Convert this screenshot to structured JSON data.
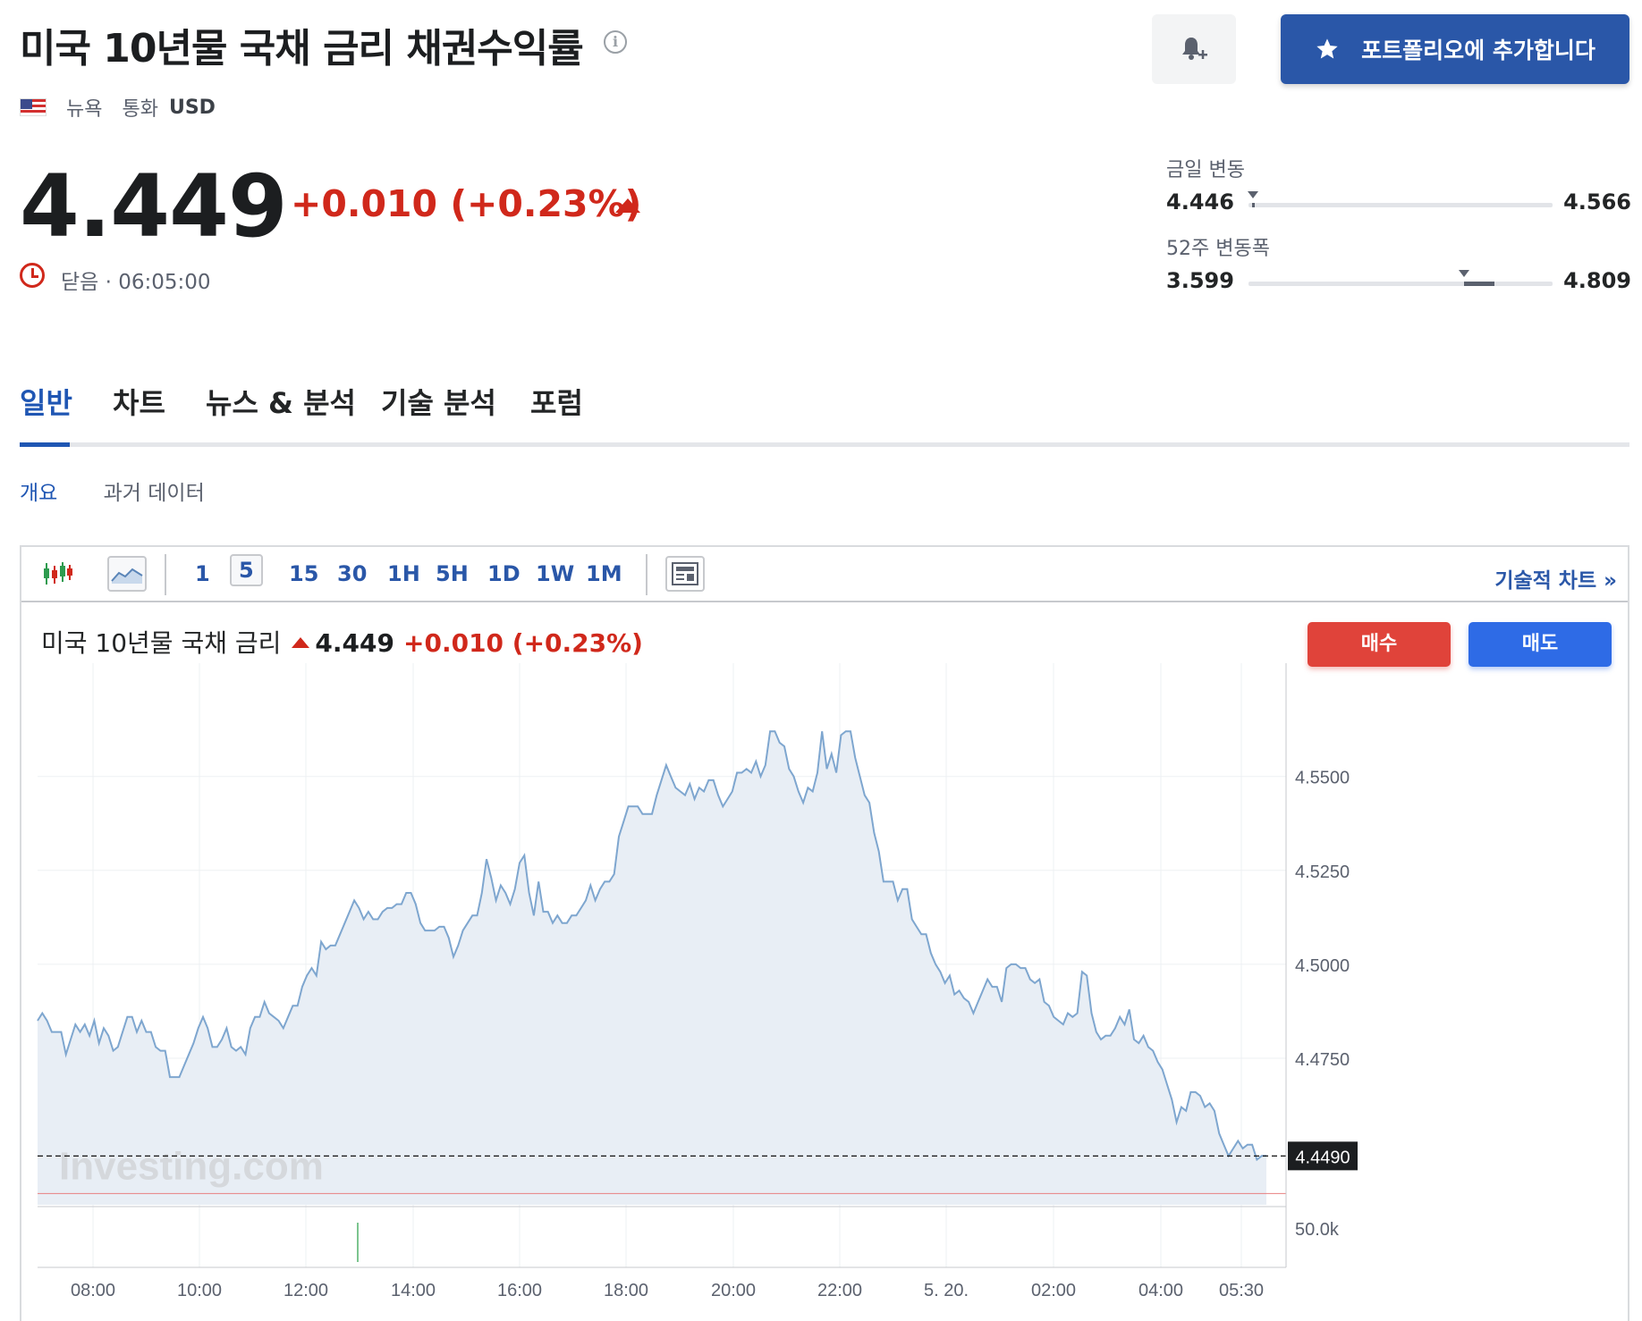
{
  "header": {
    "title": "미국 10년물 국채 금리 채권수익률",
    "market": "뉴욕",
    "currency_label": "통화",
    "currency": "USD",
    "add_portfolio_label": "포트폴리오에 추가합니다"
  },
  "quote": {
    "price": "4.449",
    "change": "+0.010 (+0.23%)",
    "status": "닫음 · 06:05:00",
    "day_range": {
      "label": "금일 변동",
      "low": "4.446",
      "high": "4.566",
      "current": 4.449
    },
    "week52_range": {
      "label": "52주 변동폭",
      "low": "3.599",
      "high": "4.809",
      "range_low": 4.446,
      "range_high": 4.566
    }
  },
  "tabs": [
    {
      "label": "일반",
      "active": true
    },
    {
      "label": "차트"
    },
    {
      "label": "뉴스 & 분석"
    },
    {
      "label": "기술 분석"
    },
    {
      "label": "포럼"
    }
  ],
  "subtabs": [
    {
      "label": "개요",
      "active": true
    },
    {
      "label": "과거 데이터"
    }
  ],
  "toolbar": {
    "intervals": [
      "1",
      "5",
      "15",
      "30",
      "1H",
      "5H",
      "1D",
      "1W",
      "1M"
    ],
    "selected_interval": "5",
    "tech_chart_label": "기술적 차트 »"
  },
  "chart_header": {
    "name": "미국 10년물 국채 금리",
    "price": "4.449",
    "change": "+0.010 (+0.23%)",
    "buy_label": "매수",
    "sell_label": "매도"
  },
  "chart_data": {
    "type": "area",
    "watermark": "Investing.com",
    "x_tick_labels": [
      "08:00",
      "10:00",
      "12:00",
      "14:00",
      "16:00",
      "18:00",
      "20:00",
      "22:00",
      "5. 20.",
      "02:00",
      "04:00",
      "05:30"
    ],
    "y_tick_labels": [
      "4.5500",
      "4.5250",
      "4.5000",
      "4.4750"
    ],
    "y_ticks": [
      4.55,
      4.525,
      4.5,
      4.475
    ],
    "ylim": [
      4.436,
      4.573
    ],
    "current_value": 4.449,
    "current_label": "4.4490",
    "reference_value": 4.439,
    "volume_label": "50.0k",
    "colors": {
      "line": "#7ea6cf",
      "fill": "#e8eef5",
      "reference": "#e88080"
    },
    "series": [
      {
        "values": [
          4.485,
          4.487,
          4.485,
          4.482,
          4.482,
          4.482,
          4.476,
          4.48,
          4.484,
          4.482,
          4.484,
          4.481,
          4.485,
          4.479,
          4.483,
          4.481,
          4.477,
          4.478,
          4.482,
          4.486,
          4.486,
          4.482,
          4.485,
          4.482,
          4.482,
          4.478,
          4.477,
          4.477,
          4.47,
          4.47,
          4.47,
          4.473,
          4.476,
          4.479,
          4.483,
          4.486,
          4.483,
          4.478,
          4.478,
          4.48,
          4.483,
          4.478,
          4.477,
          4.478,
          4.476,
          4.483,
          4.486,
          4.486,
          4.49,
          4.487,
          4.486,
          4.485,
          4.483,
          4.486,
          4.489,
          4.489,
          4.494,
          4.497,
          4.499,
          4.497,
          4.506,
          4.504,
          4.505,
          4.505,
          4.508,
          4.511,
          4.514,
          4.517,
          4.515,
          4.512,
          4.514,
          4.512,
          4.512,
          4.514,
          4.515,
          4.515,
          4.516,
          4.516,
          4.519,
          4.519,
          4.516,
          4.511,
          4.509,
          4.509,
          4.509,
          4.51,
          4.51,
          4.507,
          4.502,
          4.505,
          4.509,
          4.511,
          4.513,
          4.513,
          4.519,
          4.528,
          4.523,
          4.517,
          4.521,
          4.519,
          4.516,
          4.52,
          4.527,
          4.529,
          4.519,
          4.513,
          4.522,
          4.514,
          4.514,
          4.511,
          4.513,
          4.511,
          4.511,
          4.513,
          4.513,
          4.515,
          4.517,
          4.521,
          4.517,
          4.52,
          4.522,
          4.522,
          4.524,
          4.534,
          4.538,
          4.542,
          4.542,
          4.542,
          4.54,
          4.54,
          4.54,
          4.545,
          4.549,
          4.553,
          4.55,
          4.547,
          4.546,
          4.545,
          4.548,
          4.544,
          4.547,
          4.546,
          4.549,
          4.549,
          4.545,
          4.542,
          4.544,
          4.546,
          4.551,
          4.551,
          4.552,
          4.551,
          4.554,
          4.55,
          4.553,
          4.562,
          4.562,
          4.559,
          4.558,
          4.552,
          4.55,
          4.546,
          4.543,
          4.547,
          4.546,
          4.551,
          4.562,
          4.552,
          4.556,
          4.551,
          4.561,
          4.562,
          4.562,
          4.555,
          4.55,
          4.545,
          4.543,
          4.535,
          4.53,
          4.522,
          4.522,
          4.522,
          4.517,
          4.52,
          4.52,
          4.512,
          4.51,
          4.508,
          4.508,
          4.503,
          4.5,
          4.498,
          4.495,
          4.497,
          4.492,
          4.493,
          4.491,
          4.49,
          4.487,
          4.49,
          4.493,
          4.496,
          4.494,
          4.494,
          4.49,
          4.499,
          4.5,
          4.5,
          4.499,
          4.499,
          4.496,
          4.495,
          4.496,
          4.49,
          4.489,
          4.486,
          4.485,
          4.484,
          4.487,
          4.486,
          4.487,
          4.498,
          4.497,
          4.487,
          4.482,
          4.48,
          4.481,
          4.481,
          4.483,
          4.486,
          4.484,
          4.488,
          4.48,
          4.479,
          4.481,
          4.478,
          4.477,
          4.474,
          4.472,
          4.468,
          4.464,
          4.458,
          4.462,
          4.461,
          4.466,
          4.466,
          4.465,
          4.462,
          4.463,
          4.461,
          4.455,
          4.452,
          4.449,
          4.451,
          4.453,
          4.451,
          4.452,
          4.452,
          4.448,
          4.449,
          4.449
        ]
      }
    ]
  }
}
